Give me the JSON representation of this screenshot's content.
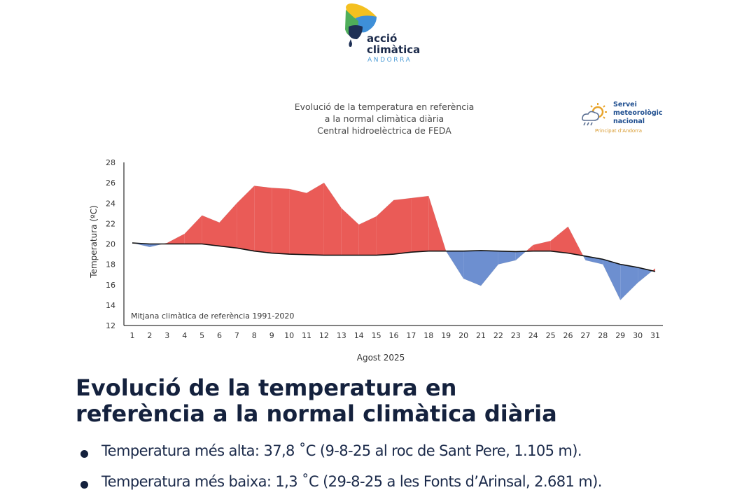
{
  "logo": {
    "line1": "acció",
    "line2": "climàtica",
    "line3": "ANDORRA"
  },
  "smn_logo": {
    "name_line1": "Servei",
    "name_line2": "meteorològic",
    "name_line3": "nacional",
    "subtitle": "Principat d'Andorra"
  },
  "chart_data": {
    "type": "line",
    "title": [
      "Evolució de la temperatura en referència",
      "a la normal climàtica diària",
      "Central hidroelèctrica de FEDA"
    ],
    "xlabel": "Agost 2025",
    "ylabel": "Temperatura (ºC)",
    "ylim": [
      12,
      28
    ],
    "yticks": [
      12,
      14,
      16,
      18,
      20,
      22,
      24,
      26,
      28
    ],
    "x": [
      1,
      2,
      3,
      4,
      5,
      6,
      7,
      8,
      9,
      10,
      11,
      12,
      13,
      14,
      15,
      16,
      17,
      18,
      19,
      20,
      21,
      22,
      23,
      24,
      25,
      26,
      27,
      28,
      29,
      30,
      31
    ],
    "series": [
      {
        "values": [
          20.1,
          19.7,
          20.1,
          21.0,
          22.8,
          22.1,
          24.0,
          25.7,
          25.5,
          25.4,
          25.0,
          26.0,
          23.5,
          21.9,
          22.7,
          24.3,
          24.5,
          24.7,
          19.3,
          16.6,
          15.9,
          18.0,
          18.4,
          19.9,
          20.3,
          21.7,
          18.4,
          18.0,
          14.5,
          16.2,
          17.6
        ]
      },
      {
        "values": [
          20.1,
          20.0,
          20.0,
          20.0,
          20.0,
          19.8,
          19.6,
          19.3,
          19.1,
          19.0,
          18.95,
          18.9,
          18.9,
          18.9,
          18.9,
          19.0,
          19.2,
          19.3,
          19.3,
          19.3,
          19.35,
          19.3,
          19.25,
          19.3,
          19.3,
          19.1,
          18.8,
          18.5,
          18.0,
          17.7,
          17.3
        ]
      }
    ],
    "annotation": "Mitjana climàtica de referència 1991-2020",
    "colors": {
      "above": "#ea5b57",
      "below": "#6d8fd0",
      "normal": "#111111"
    },
    "grid": false
  },
  "heading": {
    "line1": "Evolució de la temperatura en",
    "line2": "referència a la normal climàtica diària"
  },
  "bullets": [
    "Temperatura més alta: 37,8 ˚C (9-8-25 al roc de Sant Pere, 1.105 m).",
    "Temperatura més baixa: 1,3 ˚C (29-8-25 a les Fonts d’Arinsal, 2.681 m)."
  ]
}
